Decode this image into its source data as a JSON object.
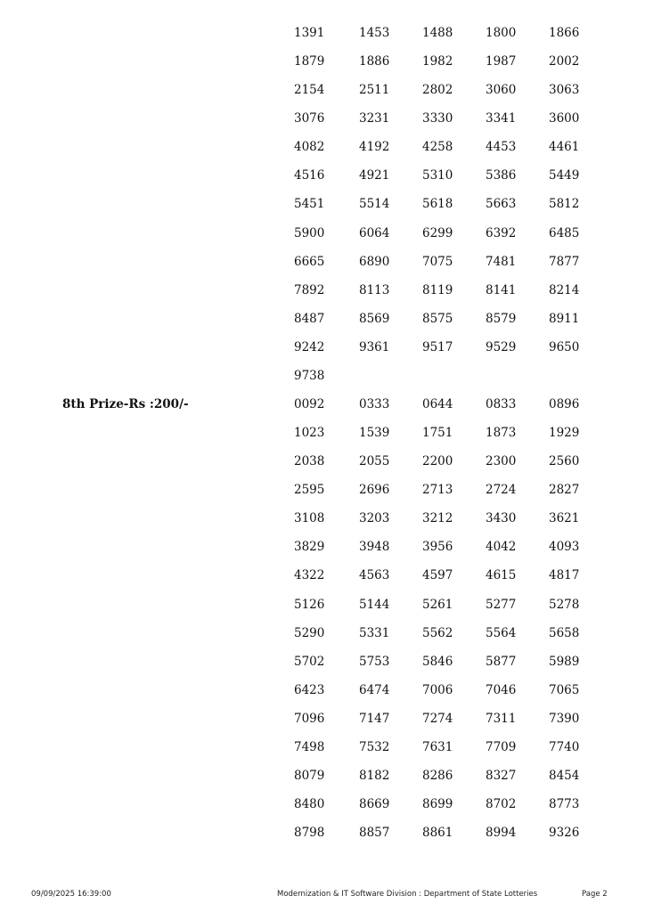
{
  "sections": [
    {
      "label": "",
      "numbers": [
        "1391",
        "1453",
        "1488",
        "1800",
        "1866",
        "1879",
        "1886",
        "1982",
        "1987",
        "2002",
        "2154",
        "2511",
        "2802",
        "3060",
        "3063",
        "3076",
        "3231",
        "3330",
        "3341",
        "3600",
        "4082",
        "4192",
        "4258",
        "4453",
        "4461",
        "4516",
        "4921",
        "5310",
        "5386",
        "5449",
        "5451",
        "5514",
        "5618",
        "5663",
        "5812",
        "5900",
        "6064",
        "6299",
        "6392",
        "6485",
        "6665",
        "6890",
        "7075",
        "7481",
        "7877",
        "7892",
        "8113",
        "8119",
        "8141",
        "8214",
        "8487",
        "8569",
        "8575",
        "8579",
        "8911",
        "9242",
        "9361",
        "9517",
        "9529",
        "9650",
        "9738"
      ]
    },
    {
      "label": "8th Prize-Rs :200/-",
      "numbers": [
        "0092",
        "0333",
        "0644",
        "0833",
        "0896",
        "1023",
        "1539",
        "1751",
        "1873",
        "1929",
        "2038",
        "2055",
        "2200",
        "2300",
        "2560",
        "2595",
        "2696",
        "2713",
        "2724",
        "2827",
        "3108",
        "3203",
        "3212",
        "3430",
        "3621",
        "3829",
        "3948",
        "3956",
        "4042",
        "4093",
        "4322",
        "4563",
        "4597",
        "4615",
        "4817",
        "5126",
        "5144",
        "5261",
        "5277",
        "5278",
        "5290",
        "5331",
        "5562",
        "5564",
        "5658",
        "5702",
        "5753",
        "5846",
        "5877",
        "5989",
        "6423",
        "6474",
        "7006",
        "7046",
        "7065",
        "7096",
        "7147",
        "7274",
        "7311",
        "7390",
        "7498",
        "7532",
        "7631",
        "7709",
        "7740",
        "8079",
        "8182",
        "8286",
        "8327",
        "8454",
        "8480",
        "8669",
        "8699",
        "8702",
        "8773",
        "8798",
        "8857",
        "8861",
        "8994",
        "9326"
      ]
    }
  ],
  "footer": {
    "timestamp": "09/09/2025 16:39:00",
    "division": "Modernization & IT Software Division : Department of State Lotteries",
    "page": "Page 2"
  }
}
